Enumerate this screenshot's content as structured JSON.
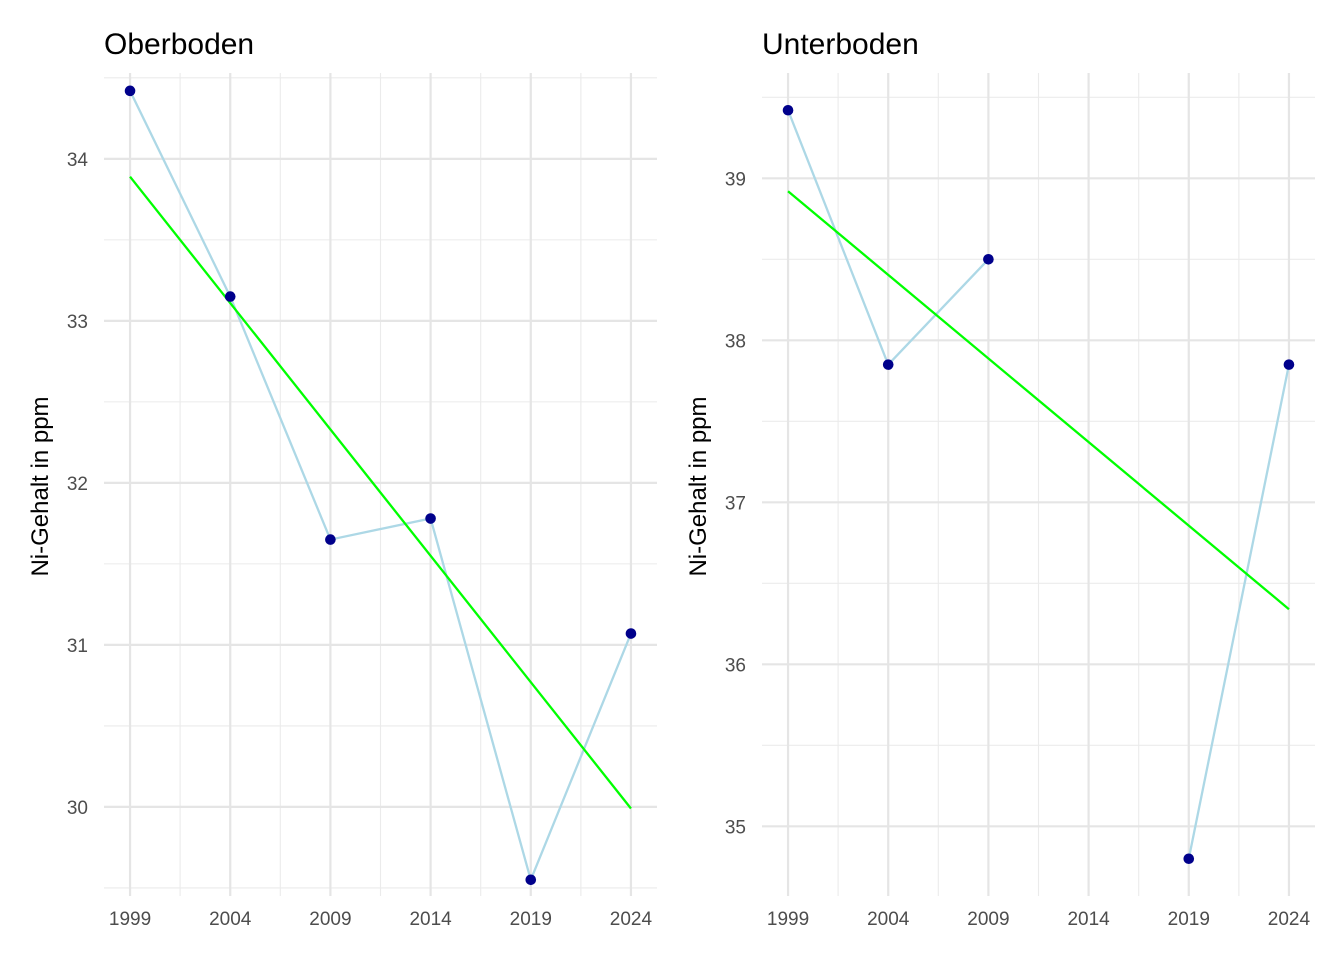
{
  "chart_data": [
    {
      "type": "line",
      "title": "Oberboden",
      "xlabel": "",
      "ylabel": "Ni-Gehalt in ppm",
      "x_ticks": [
        1999,
        2004,
        2009,
        2014,
        2019,
        2024
      ],
      "y_ticks": [
        30,
        31,
        32,
        33,
        34
      ],
      "xlim": [
        1997.7,
        2025.3
      ],
      "ylim": [
        29.45,
        34.53
      ],
      "grid": true,
      "series": [
        {
          "points": [
            [
              1999,
              34.42
            ],
            [
              2004,
              33.15
            ],
            [
              2009,
              31.65
            ],
            [
              2014,
              31.78
            ],
            [
              2019,
              29.55
            ],
            [
              2024,
              31.07
            ]
          ],
          "line_color": "#add8e6",
          "point_color": "#00008b"
        }
      ],
      "trend": {
        "points": [
          [
            1999,
            33.89
          ],
          [
            2024,
            29.99
          ]
        ],
        "color": "#00ff00"
      }
    },
    {
      "type": "line",
      "title": "Unterboden",
      "xlabel": "",
      "ylabel": "Ni-Gehalt in ppm",
      "x_ticks": [
        1999,
        2004,
        2009,
        2014,
        2019,
        2024
      ],
      "y_ticks": [
        35,
        36,
        37,
        38,
        39
      ],
      "xlim": [
        1997.7,
        2025.3
      ],
      "ylim": [
        34.57,
        39.65
      ],
      "grid": true,
      "series": [
        {
          "points": [
            [
              1999,
              39.42
            ],
            [
              2004,
              37.85
            ],
            [
              2009,
              38.5
            ],
            [
              2019,
              34.8
            ],
            [
              2024,
              37.85
            ]
          ],
          "gaps_after_index": [
            2
          ],
          "line_color": "#add8e6",
          "point_color": "#00008b"
        }
      ],
      "trend": {
        "points": [
          [
            1999,
            38.92
          ],
          [
            2024,
            36.34
          ]
        ],
        "color": "#00ff00"
      }
    }
  ]
}
